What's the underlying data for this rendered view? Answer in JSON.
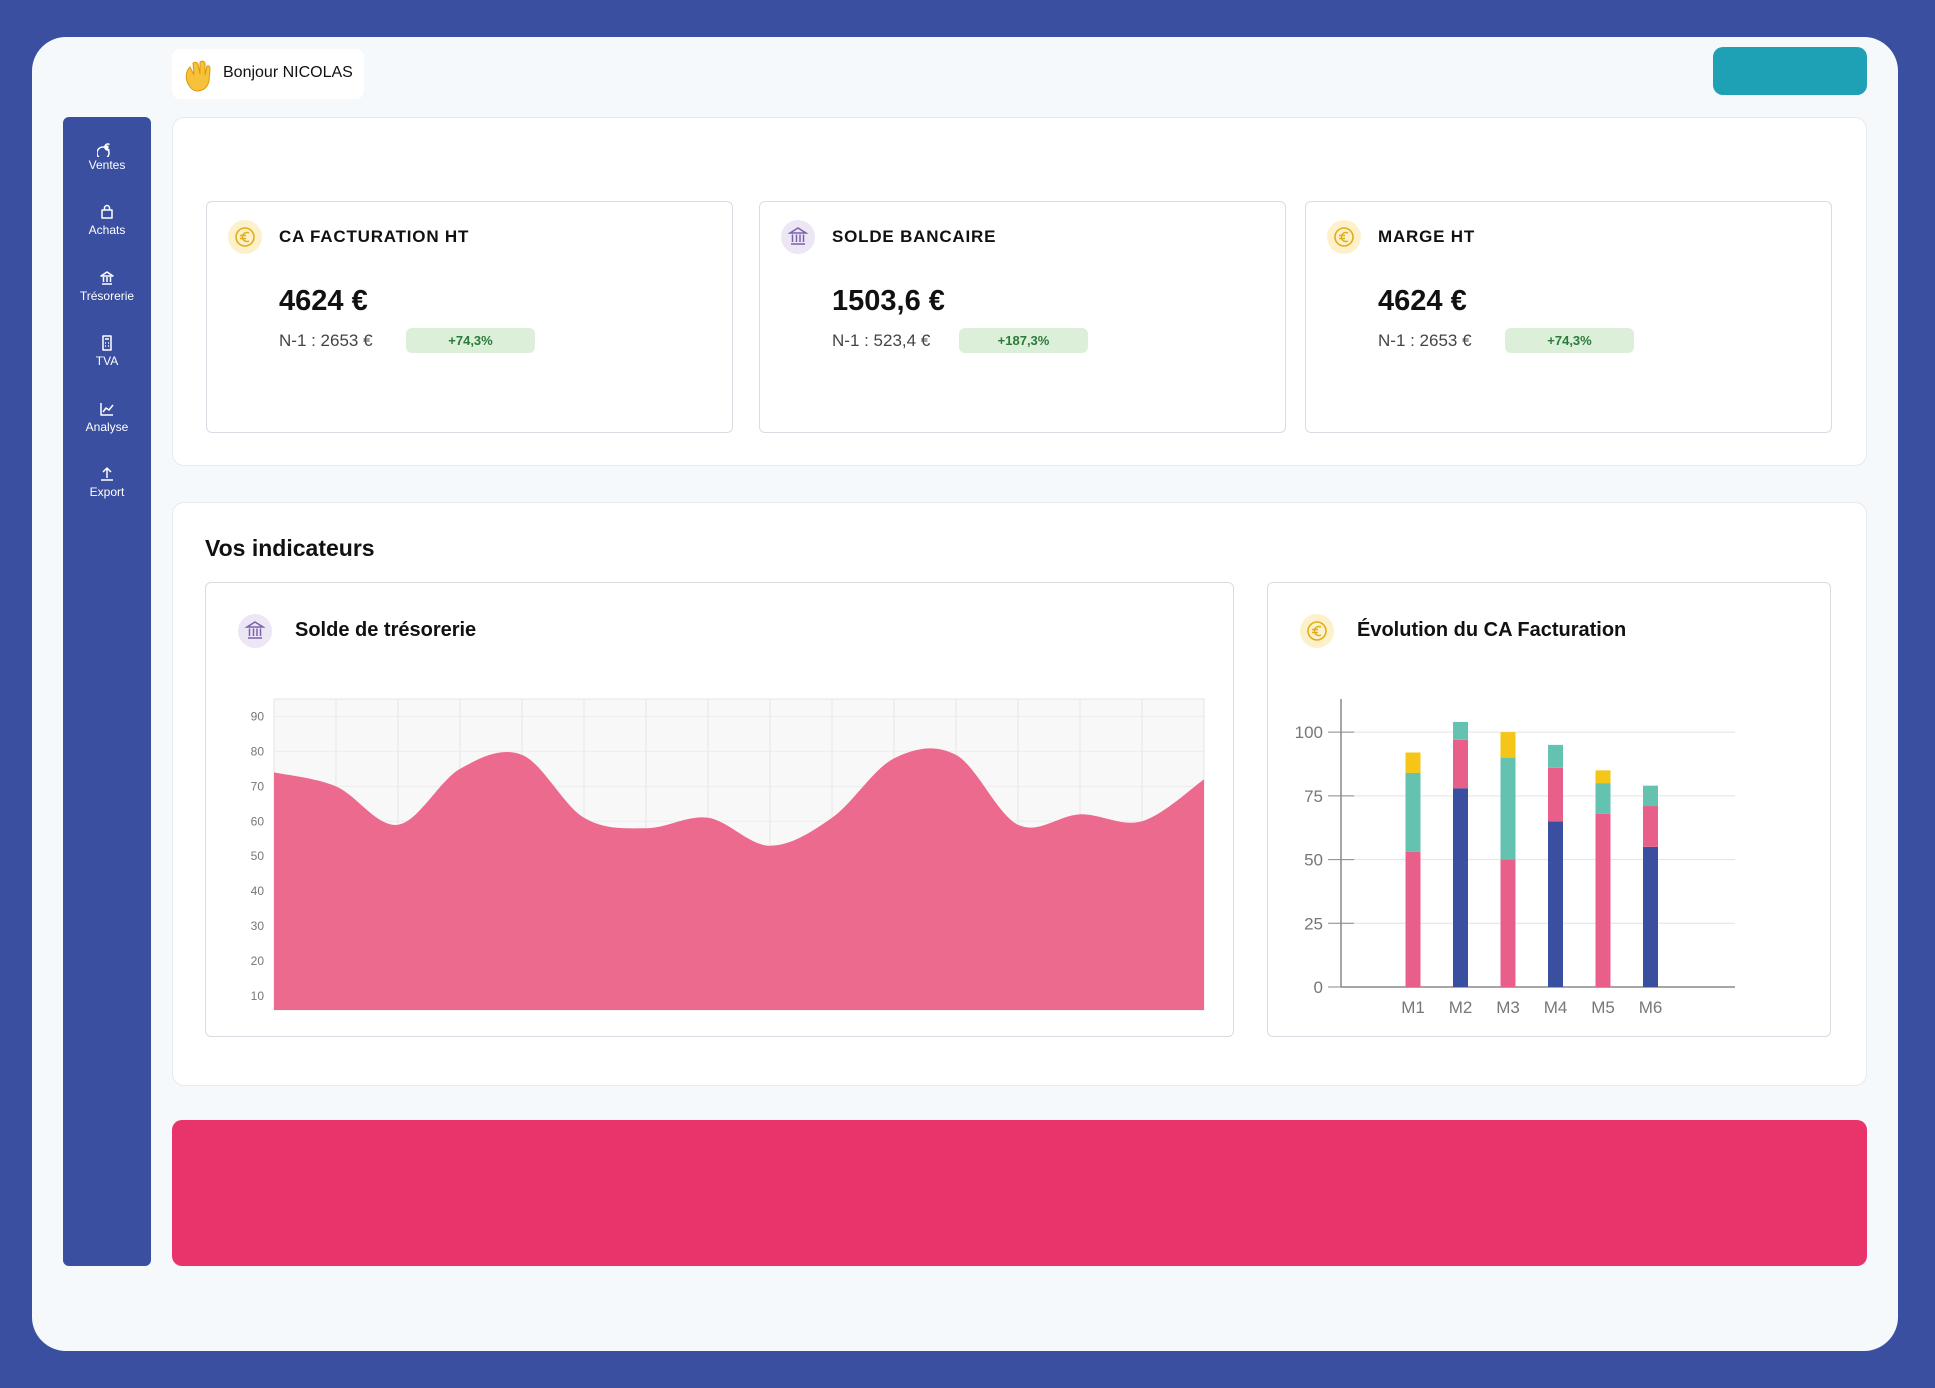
{
  "header": {
    "greeting": "Bonjour NICOLAS"
  },
  "sidebar": {
    "items": [
      "Ventes",
      "Achats",
      "Trésorerie",
      "TVA",
      "Analyse",
      "Export"
    ]
  },
  "kpis": [
    {
      "title": "CA FACTURATION HT",
      "value": "4624 €",
      "previous": "N-1 : 2653 €",
      "change": "+74,3%"
    },
    {
      "title": "SOLDE BANCAIRE",
      "value": "1503,6 €",
      "previous": "N-1 : 523,4 €",
      "change": "+187,3%"
    },
    {
      "title": "MARGE HT",
      "value": "4624 €",
      "previous": "N-1 : 2653 €",
      "change": "+74,3%"
    }
  ],
  "indicators": {
    "title": "Vos indicateurs"
  },
  "chart_data": [
    {
      "type": "area",
      "title": "Solde de trésorerie",
      "color": "#ec6a8d",
      "values": [
        74,
        70,
        59,
        75,
        79,
        61,
        58,
        61,
        53,
        61,
        78,
        79,
        59,
        62,
        60,
        72
      ],
      "ylim": [
        6,
        95
      ],
      "yticks": [
        10,
        20,
        30,
        40,
        50,
        60,
        70,
        80,
        90
      ],
      "grid": true
    },
    {
      "type": "bar",
      "stacked": true,
      "title": "Évolution du CA Facturation",
      "categories": [
        "M1",
        "M2",
        "M3",
        "M4",
        "M5",
        "M6"
      ],
      "series": [
        {
          "color": "#3b4fa0",
          "values": [
            0,
            78,
            0,
            65,
            0,
            55
          ]
        },
        {
          "color": "#e8608a",
          "values": [
            53,
            19,
            50,
            21,
            68,
            16
          ]
        },
        {
          "color": "#63c2b0",
          "values": [
            31,
            7,
            40,
            9,
            12,
            8
          ]
        },
        {
          "color": "#f5c518",
          "values": [
            8,
            0,
            10,
            0,
            5,
            0
          ]
        }
      ],
      "ylim": [
        0,
        113
      ],
      "yticks": [
        0,
        25,
        50,
        75,
        100
      ],
      "grid": true
    }
  ]
}
